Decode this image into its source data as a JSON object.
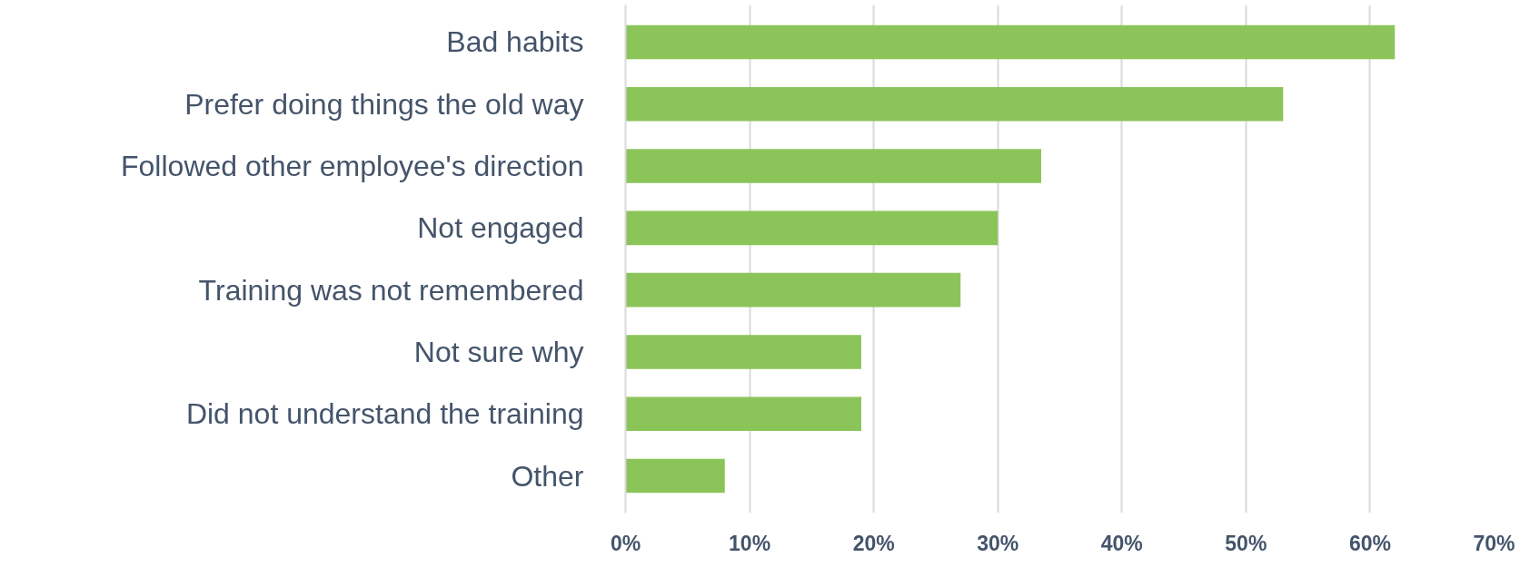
{
  "chart_data": {
    "type": "bar",
    "orientation": "horizontal",
    "categories": [
      "Bad habits",
      "Prefer doing things the old way",
      "Followed other employee's direction",
      "Not engaged",
      "Training was not remembered",
      "Not sure why",
      "Did not understand the training",
      "Other"
    ],
    "values": [
      62,
      53,
      33.5,
      30,
      27,
      19,
      19,
      8
    ],
    "color": "#8bc55a",
    "xlim": [
      0,
      70
    ],
    "xticks": [
      {
        "value": 0,
        "label": "0%"
      },
      {
        "value": 10,
        "label": "10%"
      },
      {
        "value": 20,
        "label": "20%"
      },
      {
        "value": 30,
        "label": "30%"
      },
      {
        "value": 40,
        "label": "40%"
      },
      {
        "value": 50,
        "label": "50%"
      },
      {
        "value": 60,
        "label": "60%"
      },
      {
        "value": 70,
        "label": "70%"
      }
    ],
    "grid": "x"
  }
}
